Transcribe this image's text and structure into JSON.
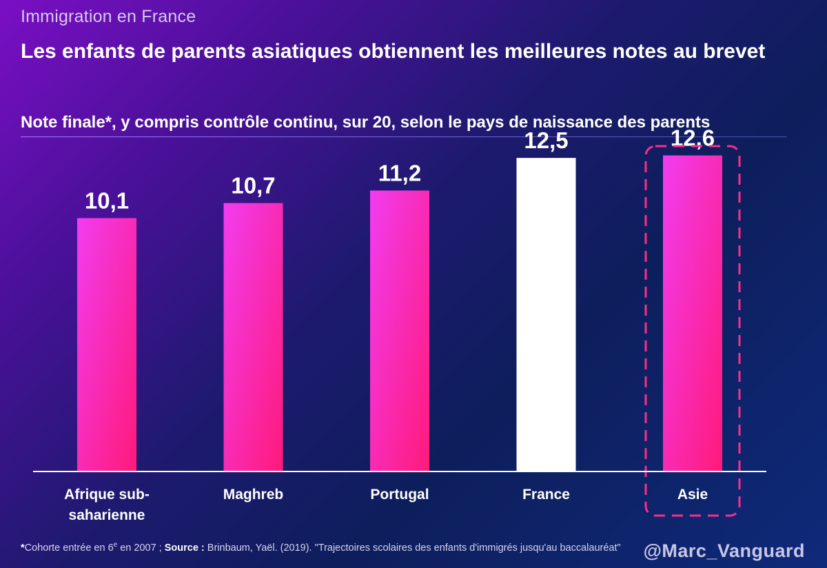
{
  "header": {
    "kicker": "Immigration en France",
    "title": "Les enfants de parents asiatiques obtiennent les meilleures notes au brevet",
    "subtitle": "Note finale*, y compris contrôle continu, sur 20, selon le pays de naissance des parents"
  },
  "chart_data": {
    "type": "bar",
    "categories": [
      "Afrique sub-saharienne",
      "Maghreb",
      "Portugal",
      "France",
      "Asie"
    ],
    "category_label_lines": [
      [
        "Afrique sub-",
        "saharienne"
      ],
      [
        "Maghreb"
      ],
      [
        "Portugal"
      ],
      [
        "France"
      ],
      [
        "Asie"
      ]
    ],
    "values": [
      10.1,
      10.7,
      11.2,
      12.5,
      12.6
    ],
    "value_labels": [
      "10,1",
      "10,7",
      "11,2",
      "12,5",
      "12,6"
    ],
    "ylim": [
      0,
      13.3
    ],
    "highlight": "Asie",
    "bar_colors": [
      "gradient-magenta",
      "gradient-magenta",
      "gradient-magenta",
      "#ffffff",
      "gradient-magenta"
    ],
    "colors": {
      "bar_top": "#f23cf0",
      "bar_bottom": "#ff1a7a",
      "reference_bar": "#ffffff",
      "highlight_border": "#ff2d8a",
      "axis": "#ffffff"
    },
    "grid": false,
    "xlabel": "",
    "ylabel": ""
  },
  "footer": {
    "footnote_star": "*",
    "footnote_text": "Cohorte entrée en 6",
    "footnote_sup": "e",
    "footnote_text2": " en 2007 ; ",
    "source_label": "Source :",
    "source_text": " Brinbaum, Yaël. (2019). \"Trajectoires scolaires des enfants d'immigrés jusqu'au baccalauréat\"",
    "handle": "@Marc_Vanguard"
  }
}
